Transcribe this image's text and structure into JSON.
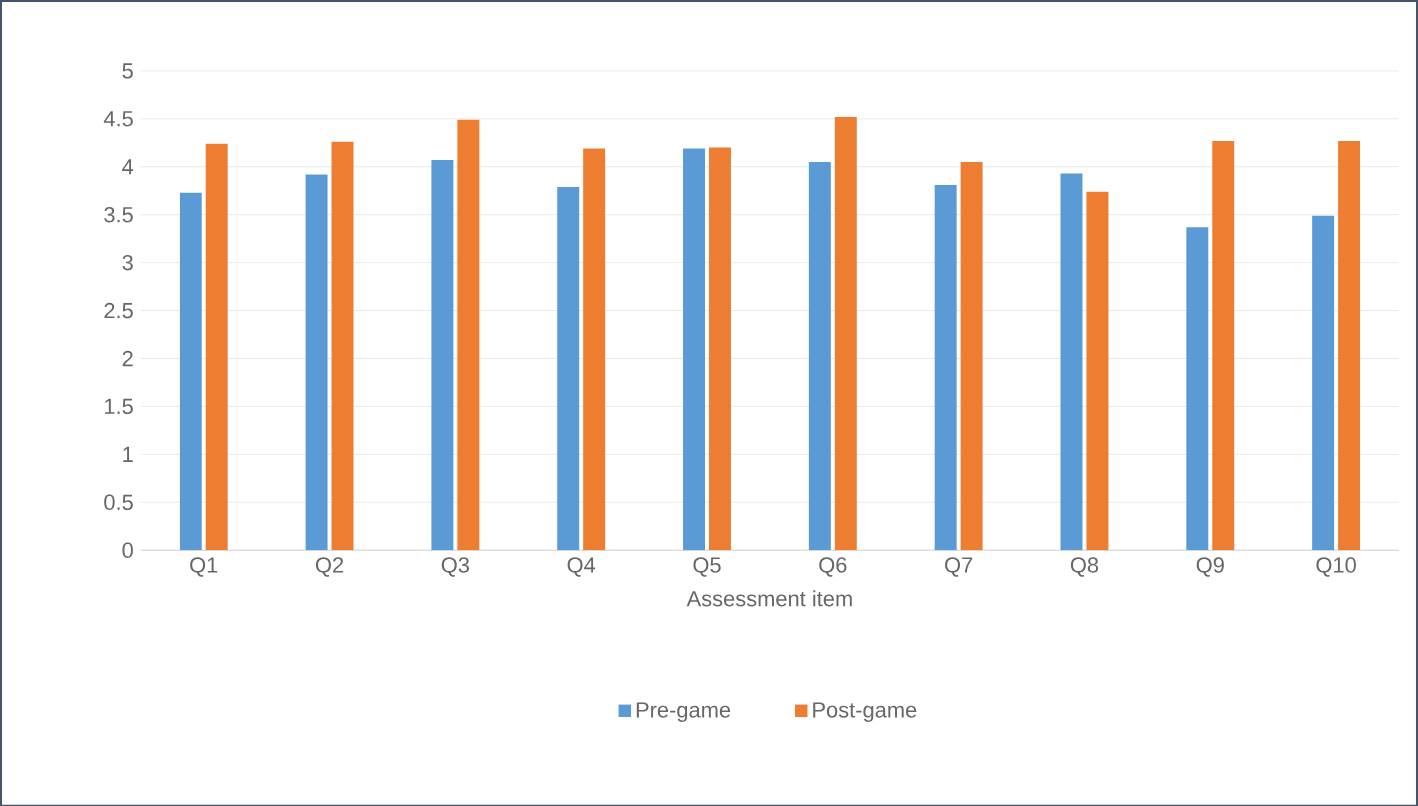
{
  "chart_data": {
    "type": "bar",
    "xlabel": "Assessment item",
    "categories": [
      "Q1",
      "Q2",
      "Q3",
      "Q4",
      "Q5",
      "Q6",
      "Q7",
      "Q8",
      "Q9",
      "Q10"
    ],
    "series": [
      {
        "name": "Pre-game",
        "color": "#5b9bd5",
        "values": [
          3.73,
          3.92,
          4.07,
          3.79,
          4.19,
          4.05,
          3.81,
          3.93,
          3.37,
          3.49
        ]
      },
      {
        "name": "Post-game",
        "color": "#ed7d31",
        "values": [
          4.24,
          4.26,
          4.49,
          4.19,
          4.2,
          4.52,
          4.05,
          3.74,
          4.27,
          4.27
        ]
      }
    ],
    "ylim": [
      0,
      5
    ],
    "yticks": [
      0,
      0.5,
      1,
      1.5,
      2,
      2.5,
      3,
      3.5,
      4,
      4.5,
      5
    ],
    "grid": "y",
    "legend": "bottom"
  }
}
